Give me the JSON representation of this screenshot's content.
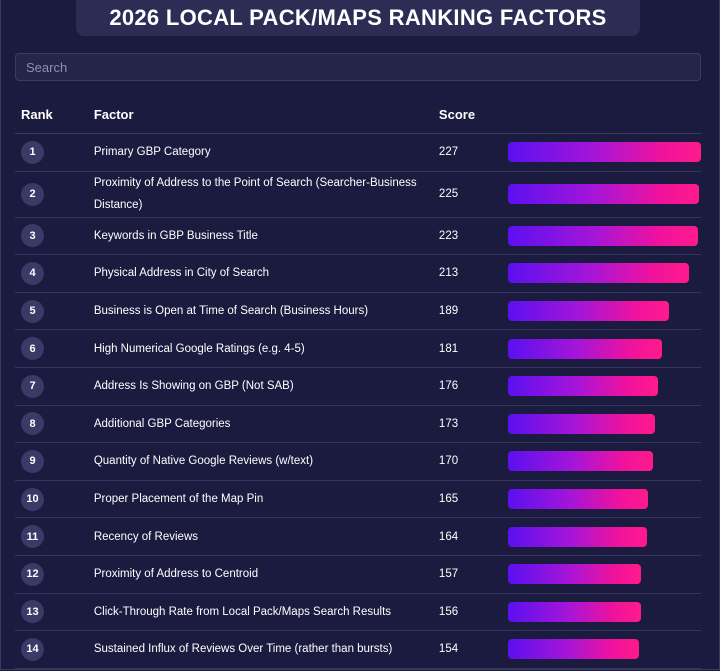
{
  "title": "2026 LOCAL PACK/MAPS RANKING FACTORS",
  "search": {
    "placeholder": "Search"
  },
  "table": {
    "headers": {
      "rank": "Rank",
      "factor": "Factor",
      "score": "Score"
    },
    "max_score": 227,
    "rows": [
      {
        "rank": "1",
        "factor": "Primary GBP Category",
        "score": "227",
        "value": 227
      },
      {
        "rank": "2",
        "factor": "Proximity of Address to the Point of Search (Searcher-Business Distance)",
        "score": "225",
        "value": 225
      },
      {
        "rank": "3",
        "factor": "Keywords in GBP Business Title",
        "score": "223",
        "value": 223
      },
      {
        "rank": "4",
        "factor": "Physical Address in City of Search",
        "score": "213",
        "value": 213
      },
      {
        "rank": "5",
        "factor": "Business is Open at Time of Search (Business Hours)",
        "score": "189",
        "value": 189
      },
      {
        "rank": "6",
        "factor": "High Numerical Google Ratings (e.g. 4-5)",
        "score": "181",
        "value": 181
      },
      {
        "rank": "7",
        "factor": "Address Is Showing on GBP (Not SAB)",
        "score": "176",
        "value": 176
      },
      {
        "rank": "8",
        "factor": "Additional GBP Categories",
        "score": "173",
        "value": 173
      },
      {
        "rank": "9",
        "factor": "Quantity of Native Google Reviews (w/text)",
        "score": "170",
        "value": 170
      },
      {
        "rank": "10",
        "factor": "Proper Placement of the Map Pin",
        "score": "165",
        "value": 165
      },
      {
        "rank": "11",
        "factor": "Recency of Reviews",
        "score": "164",
        "value": 164
      },
      {
        "rank": "12",
        "factor": "Proximity of Address to Centroid",
        "score": "157",
        "value": 157
      },
      {
        "rank": "13",
        "factor": "Click-Through Rate from Local Pack/Maps Search Results",
        "score": "156",
        "value": 156
      },
      {
        "rank": "14",
        "factor": "Sustained Influx of Reviews Over Time (rather than bursts)",
        "score": "154",
        "value": 154
      }
    ]
  },
  "colors": {
    "background": "#1b1a3f",
    "title_banner": "#2c2c55",
    "rank_circle": "#3a3a66",
    "bar_gradient_start": "#5b10f0",
    "bar_gradient_end": "#ff1a8c"
  }
}
